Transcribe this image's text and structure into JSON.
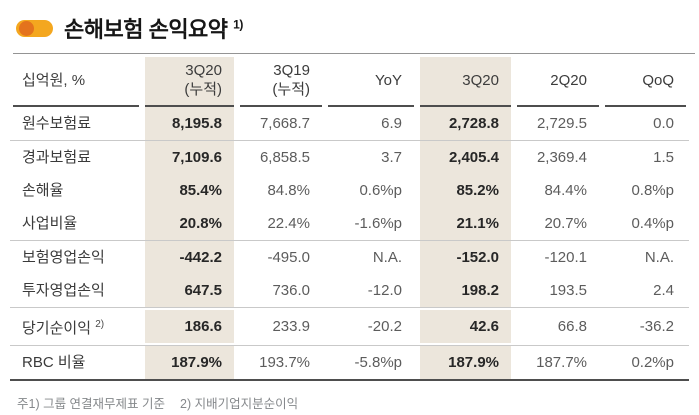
{
  "title": {
    "text": "손해보험 손익요약",
    "sup": "1)"
  },
  "table": {
    "unit_label": "십억원, %",
    "columns": [
      {
        "label": "3Q20",
        "sublabel": "(누적)",
        "highlighted": true
      },
      {
        "label": "3Q19",
        "sublabel": "(누적)",
        "highlighted": false
      },
      {
        "label": "YoY",
        "highlighted": false
      },
      {
        "label": "3Q20",
        "highlighted": true
      },
      {
        "label": "2Q20",
        "highlighted": false
      },
      {
        "label": "QoQ",
        "highlighted": false
      }
    ],
    "rows": [
      {
        "label": "원수보험료",
        "values": [
          "8,195.8",
          "7,668.7",
          "6.9",
          "2,728.8",
          "2,729.5",
          "0.0"
        ]
      },
      {
        "label": "경과보험료",
        "values": [
          "7,109.6",
          "6,858.5",
          "3.7",
          "2,405.4",
          "2,369.4",
          "1.5"
        ]
      },
      {
        "label": "손해율",
        "values": [
          "85.4%",
          "84.8%",
          "0.6%p",
          "85.2%",
          "84.4%",
          "0.8%p"
        ]
      },
      {
        "label": "사업비율",
        "values": [
          "20.8%",
          "22.4%",
          "-1.6%p",
          "21.1%",
          "20.7%",
          "0.4%p"
        ]
      },
      {
        "label": "보험영업손익",
        "values": [
          "-442.2",
          "-495.0",
          "N.A.",
          "-152.0",
          "-120.1",
          "N.A."
        ]
      },
      {
        "label": "투자영업손익",
        "values": [
          "647.5",
          "736.0",
          "-12.0",
          "198.2",
          "193.5",
          "2.4"
        ]
      },
      {
        "label": "당기순이익",
        "label_sup": "2)",
        "values": [
          "186.6",
          "233.9",
          "-20.2",
          "42.6",
          "66.8",
          "-36.2"
        ]
      },
      {
        "label": "RBC 비율",
        "values": [
          "187.9%",
          "193.7%",
          "-5.8%p",
          "187.9%",
          "187.7%",
          "0.2%p"
        ]
      }
    ]
  },
  "footnote": {
    "note1": "주1) 그룹 연결재무제표 기준",
    "note2": "2) 지배기업지분순이익"
  },
  "colors": {
    "accent_pill": "#F4A71F",
    "accent_knob": "#E4731D",
    "highlight_bg": "#ECE6DC",
    "rule_dark": "#4E4E4E",
    "rule_light": "#C9C9C9"
  }
}
